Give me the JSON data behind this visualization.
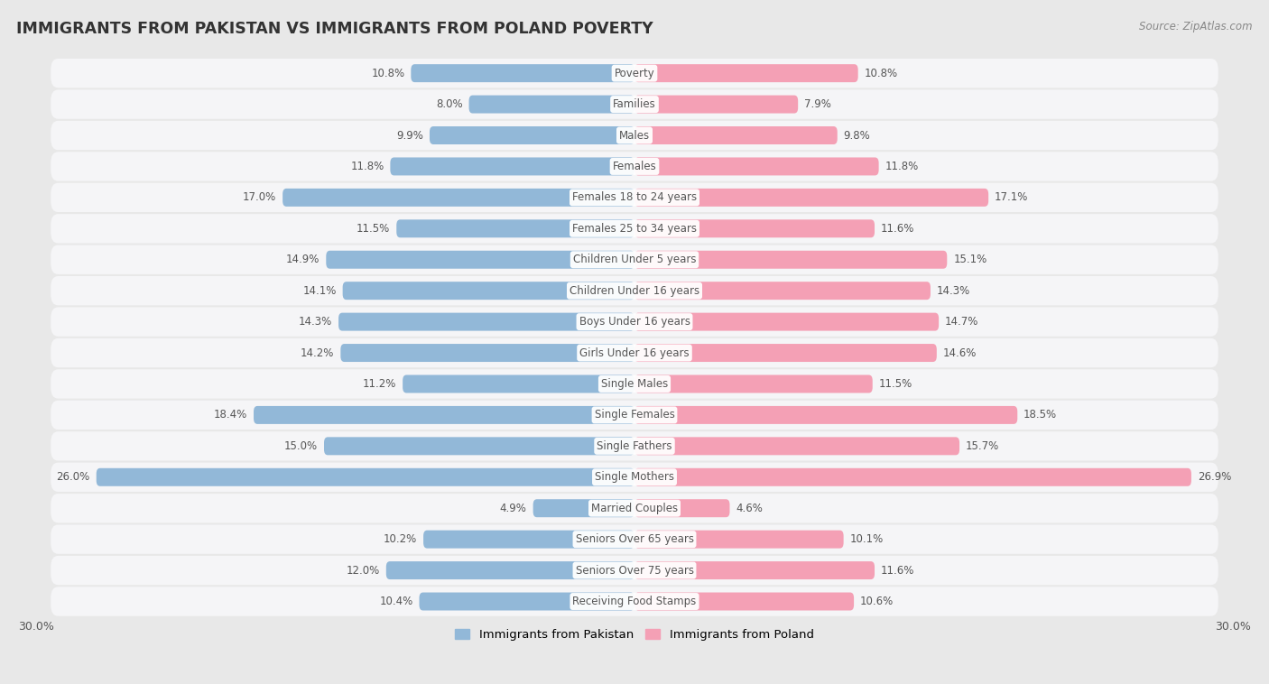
{
  "title": "IMMIGRANTS FROM PAKISTAN VS IMMIGRANTS FROM POLAND POVERTY",
  "source": "Source: ZipAtlas.com",
  "categories": [
    "Poverty",
    "Families",
    "Males",
    "Females",
    "Females 18 to 24 years",
    "Females 25 to 34 years",
    "Children Under 5 years",
    "Children Under 16 years",
    "Boys Under 16 years",
    "Girls Under 16 years",
    "Single Males",
    "Single Females",
    "Single Fathers",
    "Single Mothers",
    "Married Couples",
    "Seniors Over 65 years",
    "Seniors Over 75 years",
    "Receiving Food Stamps"
  ],
  "pakistan_values": [
    10.8,
    8.0,
    9.9,
    11.8,
    17.0,
    11.5,
    14.9,
    14.1,
    14.3,
    14.2,
    11.2,
    18.4,
    15.0,
    26.0,
    4.9,
    10.2,
    12.0,
    10.4
  ],
  "poland_values": [
    10.8,
    7.9,
    9.8,
    11.8,
    17.1,
    11.6,
    15.1,
    14.3,
    14.7,
    14.6,
    11.5,
    18.5,
    15.7,
    26.9,
    4.6,
    10.1,
    11.6,
    10.6
  ],
  "pakistan_color": "#92b8d8",
  "poland_color": "#f4a0b5",
  "background_color": "#e8e8e8",
  "row_color": "#f5f5f7",
  "axis_max": 30.0,
  "bar_height": 0.58,
  "legend_label_pakistan": "Immigrants from Pakistan",
  "legend_label_poland": "Immigrants from Poland"
}
